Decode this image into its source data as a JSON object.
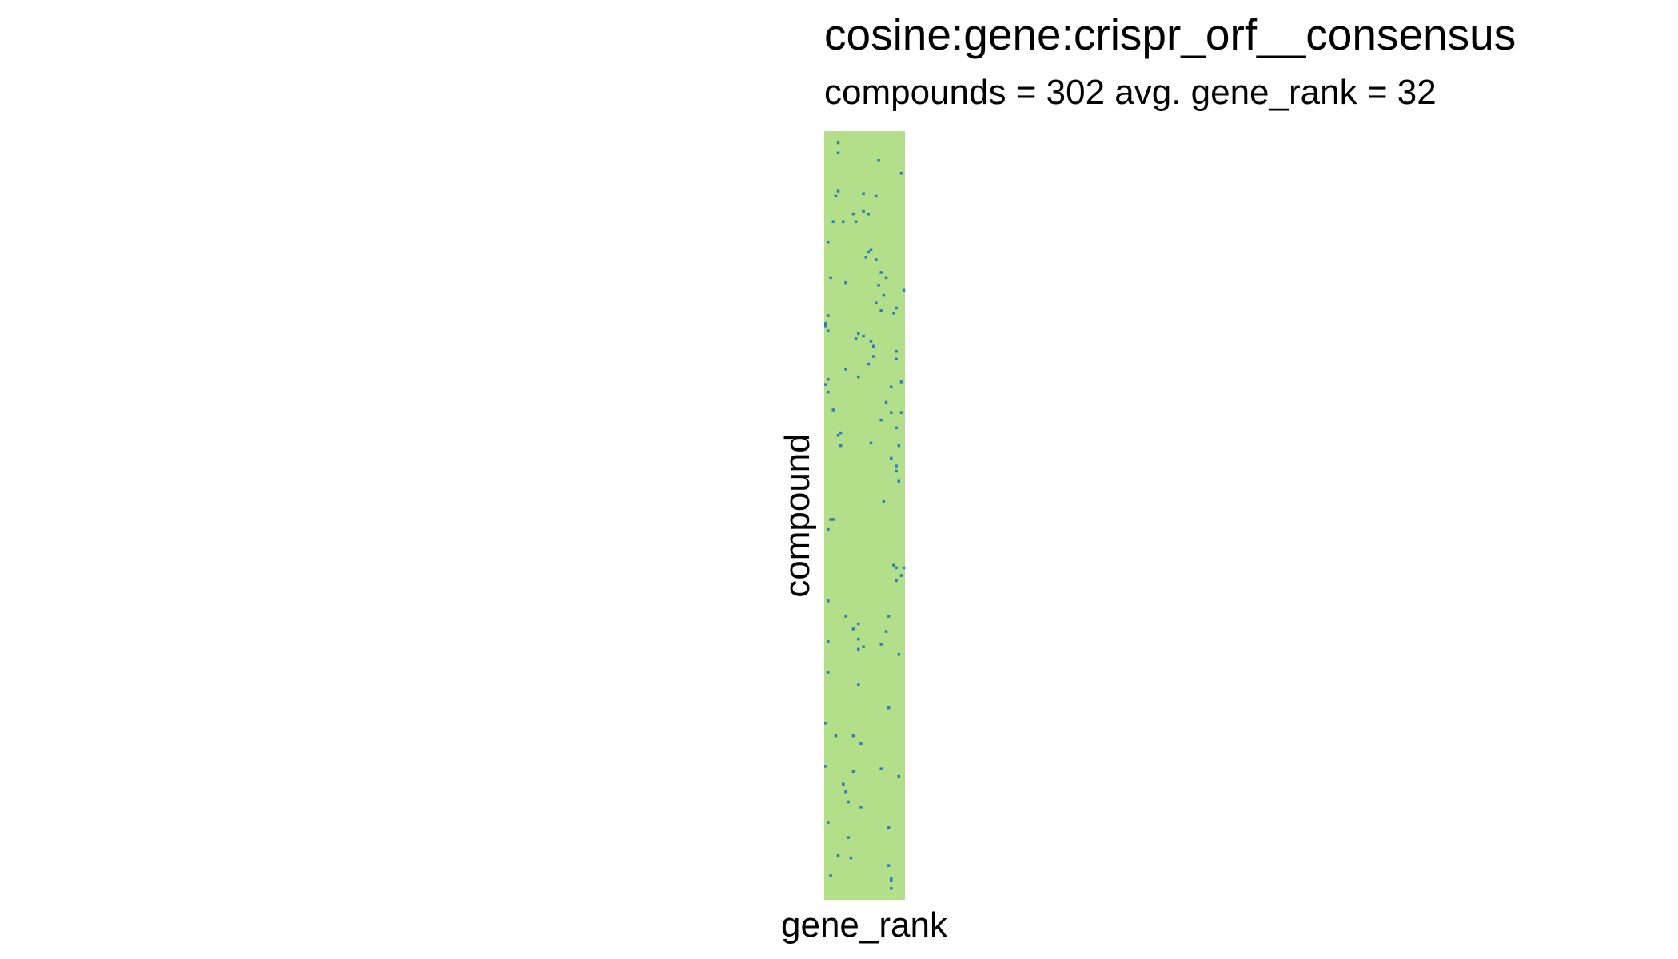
{
  "chart_data": {
    "type": "heatmap",
    "title": "cosine:gene:crispr_orf__consensus",
    "subtitle": "compounds = 302 avg. gene_rank = 32",
    "xlabel": "gene_rank",
    "ylabel": "compound",
    "n_rows": 302,
    "n_cols": 32,
    "colors": {
      "background": "#b3df8a",
      "marker": "#2c7fb8"
    },
    "marked_cells": [
      [
        4,
        5
      ],
      [
        8,
        5
      ],
      [
        11,
        21
      ],
      [
        16,
        30
      ],
      [
        23,
        5
      ],
      [
        24,
        15
      ],
      [
        25,
        4
      ],
      [
        25,
        20
      ],
      [
        31,
        15
      ],
      [
        32,
        11
      ],
      [
        32,
        17
      ],
      [
        35,
        3
      ],
      [
        35,
        7
      ],
      [
        35,
        12
      ],
      [
        43,
        1
      ],
      [
        46,
        18
      ],
      [
        47,
        17
      ],
      [
        49,
        16
      ],
      [
        50,
        20
      ],
      [
        55,
        22
      ],
      [
        57,
        2
      ],
      [
        57,
        24
      ],
      [
        59,
        8
      ],
      [
        60,
        21
      ],
      [
        62,
        31
      ],
      [
        64,
        23
      ],
      [
        67,
        20
      ],
      [
        69,
        28
      ],
      [
        70,
        22
      ],
      [
        71,
        27
      ],
      [
        72,
        1
      ],
      [
        75,
        0
      ],
      [
        76,
        0
      ],
      [
        78,
        1
      ],
      [
        79,
        13
      ],
      [
        80,
        15
      ],
      [
        81,
        12
      ],
      [
        82,
        18
      ],
      [
        84,
        19
      ],
      [
        86,
        28
      ],
      [
        88,
        19
      ],
      [
        89,
        28
      ],
      [
        91,
        17
      ],
      [
        93,
        8
      ],
      [
        96,
        13
      ],
      [
        97,
        1
      ],
      [
        98,
        30
      ],
      [
        99,
        0
      ],
      [
        100,
        26
      ],
      [
        102,
        1
      ],
      [
        106,
        24
      ],
      [
        109,
        3
      ],
      [
        110,
        26
      ],
      [
        110,
        30
      ],
      [
        113,
        22
      ],
      [
        116,
        28
      ],
      [
        118,
        6
      ],
      [
        119,
        5
      ],
      [
        122,
        18
      ],
      [
        123,
        6
      ],
      [
        123,
        29
      ],
      [
        128,
        26
      ],
      [
        131,
        28
      ],
      [
        133,
        28
      ],
      [
        137,
        29
      ],
      [
        145,
        23
      ],
      [
        152,
        3
      ],
      [
        152,
        2
      ],
      [
        156,
        1
      ],
      [
        170,
        27
      ],
      [
        171,
        28
      ],
      [
        171,
        31
      ],
      [
        174,
        30
      ],
      [
        176,
        28
      ],
      [
        184,
        1
      ],
      [
        190,
        8
      ],
      [
        190,
        25
      ],
      [
        193,
        13
      ],
      [
        195,
        11
      ],
      [
        196,
        24
      ],
      [
        200,
        1
      ],
      [
        199,
        13
      ],
      [
        201,
        22
      ],
      [
        202,
        15
      ],
      [
        203,
        13
      ],
      [
        205,
        29
      ],
      [
        212,
        1
      ],
      [
        217,
        13
      ],
      [
        226,
        25
      ],
      [
        232,
        0
      ],
      [
        237,
        4
      ],
      [
        237,
        11
      ],
      [
        240,
        14
      ],
      [
        249,
        0
      ],
      [
        250,
        22
      ],
      [
        251,
        11
      ],
      [
        253,
        29
      ],
      [
        256,
        7
      ],
      [
        259,
        8
      ],
      [
        263,
        9
      ],
      [
        265,
        14
      ],
      [
        271,
        1
      ],
      [
        273,
        25
      ],
      [
        277,
        9
      ],
      [
        284,
        5
      ],
      [
        285,
        10
      ],
      [
        288,
        25
      ],
      [
        292,
        2
      ],
      [
        293,
        26
      ],
      [
        294,
        26
      ],
      [
        297,
        26
      ]
    ]
  }
}
